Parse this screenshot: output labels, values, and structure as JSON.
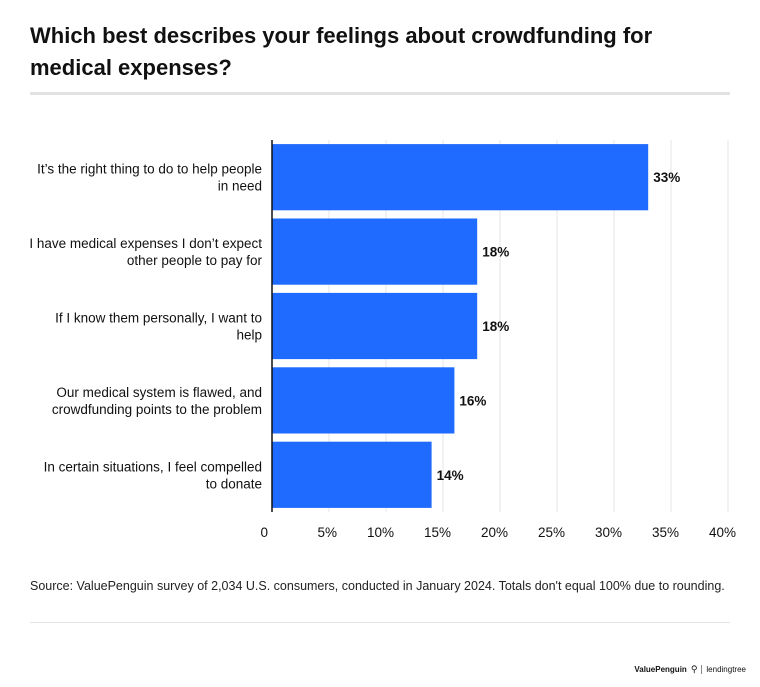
{
  "header": {
    "title": "Which best describes your feelings about crowdfunding for medical expenses?"
  },
  "chart_data": {
    "type": "bar",
    "orientation": "horizontal",
    "categories": [
      [
        "It’s the right thing to do to help people",
        "in need"
      ],
      [
        "I have medical expenses I don’t expect",
        "other people to pay for"
      ],
      [
        "If I know them personally, I want to",
        "help"
      ],
      [
        "Our medical system is flawed, and",
        "crowdfunding points to the problem"
      ],
      [
        "In certain situations, I feel compelled",
        "to donate"
      ]
    ],
    "values": [
      33,
      18,
      18,
      16,
      14
    ],
    "value_labels": [
      "33%",
      "18%",
      "18%",
      "16%",
      "14%"
    ],
    "xlim": [
      0,
      40
    ],
    "xticks": [
      0,
      5,
      10,
      15,
      20,
      25,
      30,
      35,
      40
    ],
    "xtick_labels": [
      "0",
      "5%",
      "10%",
      "15%",
      "20%",
      "25%",
      "30%",
      "35%",
      "40%"
    ],
    "bar_color": "#1f6bff",
    "grid": true
  },
  "footer": {
    "source": "Source: ValuePenguin survey of 2,034 U.S. consumers, conducted in January 2024. Totals don't equal 100% due to rounding.",
    "brand_primary": "ValuePenguin",
    "brand_secondary": "lendingtree"
  }
}
